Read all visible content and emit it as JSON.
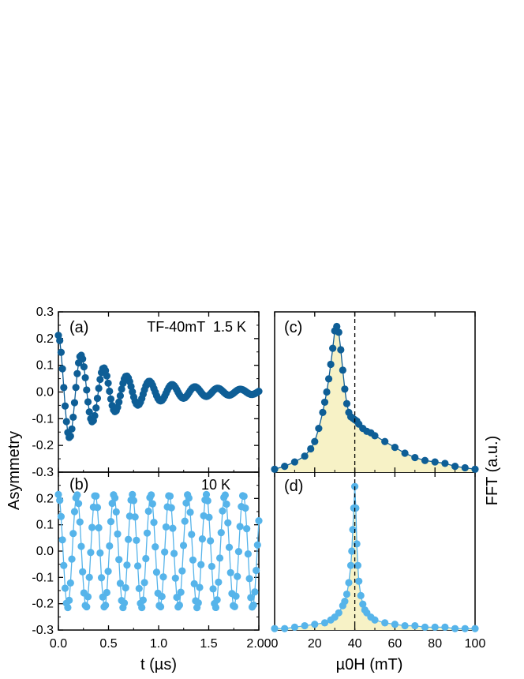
{
  "chart_data": [
    {
      "id": "a",
      "type": "line",
      "panel_label": "(a)",
      "annotation": "TF-40mT  1.5 K",
      "xlim": [
        0,
        2
      ],
      "ylim": [
        -0.3,
        0.3
      ],
      "yticks": [
        "0.3",
        "0.2",
        "0.1",
        "0.0",
        "-0.1",
        "-0.2",
        "-0.3"
      ],
      "series_model": {
        "name": "1.5 K",
        "color": "#0e5e96",
        "A0": 0.2,
        "freq_mhz": 4.4,
        "damping_us": 0.5,
        "floor_us": 2.2,
        "points": 150
      }
    },
    {
      "id": "b",
      "type": "line",
      "panel_label": "(b)",
      "annotation": "10 K",
      "xlim": [
        0,
        2
      ],
      "ylim": [
        -0.3,
        0.3
      ],
      "xlabel": "t (µs)",
      "xticks": [
        "0.0",
        "0.5",
        "1.0",
        "1.5",
        "2.00"
      ],
      "yticks": [
        "0.2",
        "0.1",
        "0.0",
        "-0.1",
        "-0.2",
        "-0.3"
      ],
      "series_model": {
        "name": "10 K",
        "color": "#56b4ea",
        "A0": 0.215,
        "freq_mhz": 5.42,
        "damping_us": 0,
        "points": 150
      }
    },
    {
      "id": "c",
      "type": "area",
      "panel_label": "(c)",
      "xlim": [
        0,
        100
      ],
      "ylim": [
        0,
        1.1
      ],
      "marker_line": 40,
      "fill_color": "#f7f2c6",
      "series": {
        "name": "1.5 K FFT",
        "color": "#0e5e96",
        "x": [
          0,
          5,
          10,
          15,
          18,
          20,
          22,
          24,
          25,
          26,
          27,
          28,
          29,
          30,
          31,
          32,
          33,
          34,
          35,
          36,
          37,
          38,
          39,
          40,
          41,
          42,
          44,
          46,
          48,
          50,
          55,
          60,
          65,
          70,
          75,
          80,
          85,
          90,
          95,
          100
        ],
        "y": [
          0.02,
          0.04,
          0.07,
          0.11,
          0.16,
          0.21,
          0.3,
          0.41,
          0.48,
          0.55,
          0.64,
          0.74,
          0.85,
          0.97,
          1.0,
          0.96,
          0.84,
          0.7,
          0.57,
          0.47,
          0.41,
          0.38,
          0.37,
          0.36,
          0.35,
          0.33,
          0.3,
          0.28,
          0.27,
          0.25,
          0.21,
          0.17,
          0.13,
          0.1,
          0.08,
          0.07,
          0.06,
          0.04,
          0.03,
          0.02
        ]
      }
    },
    {
      "id": "d",
      "type": "area",
      "panel_label": "(d)",
      "xlim": [
        0,
        100
      ],
      "ylim": [
        0,
        1.1
      ],
      "marker_line": 40,
      "fill_color": "#f7f2c6",
      "xlabel": "µ0H (mT)",
      "xticks": [
        "0",
        "20",
        "40",
        "60",
        "80",
        "100"
      ],
      "ylabel_right": "FFT (a.u.)",
      "series": {
        "name": "10 K FFT",
        "color": "#56b4ea",
        "x": [
          0,
          5,
          10,
          15,
          20,
          25,
          28,
          30,
          32,
          34,
          35,
          36,
          37,
          38,
          38.5,
          39,
          39.5,
          40,
          40.5,
          41,
          41.5,
          42,
          43,
          44,
          45,
          46,
          48,
          50,
          55,
          60,
          65,
          70,
          75,
          80,
          85,
          90,
          95,
          100
        ],
        "y": [
          0.01,
          0.01,
          0.02,
          0.03,
          0.04,
          0.05,
          0.07,
          0.09,
          0.12,
          0.17,
          0.2,
          0.25,
          0.33,
          0.45,
          0.55,
          0.7,
          0.85,
          1.0,
          0.85,
          0.6,
          0.45,
          0.34,
          0.24,
          0.18,
          0.14,
          0.12,
          0.09,
          0.07,
          0.05,
          0.04,
          0.03,
          0.03,
          0.02,
          0.02,
          0.02,
          0.01,
          0.01,
          0.01
        ]
      }
    }
  ],
  "shared": {
    "ylabel_left": "Asymmetry"
  }
}
